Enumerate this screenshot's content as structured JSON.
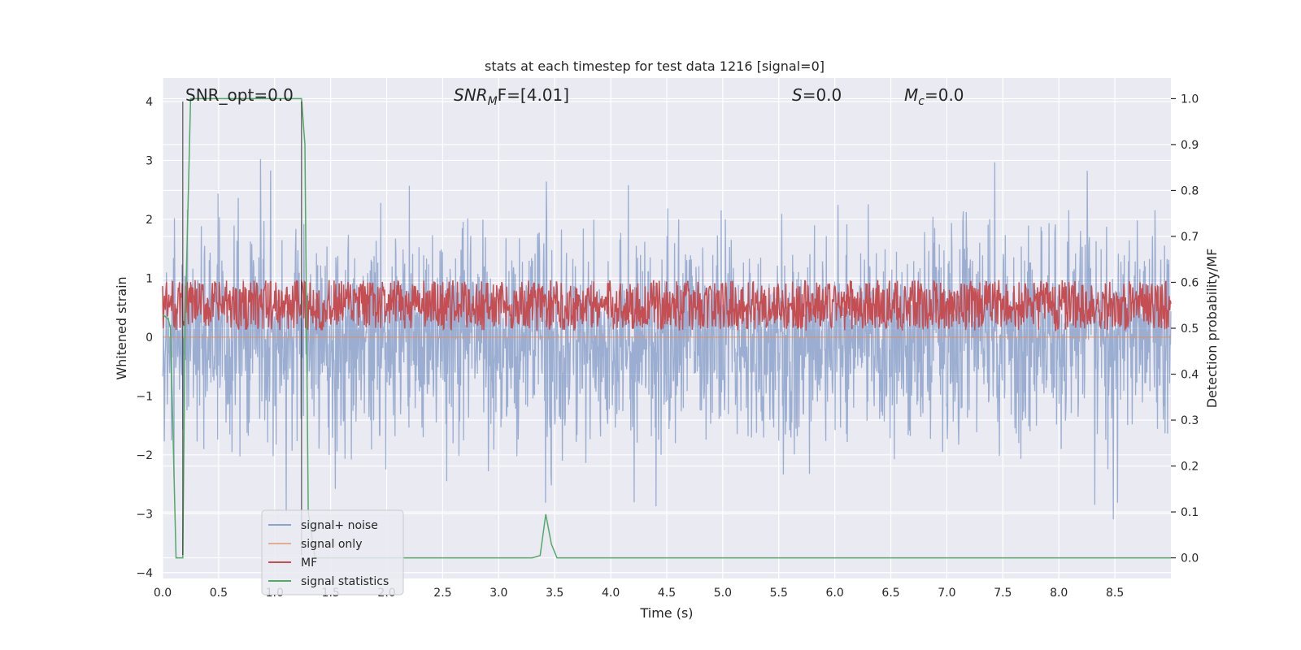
{
  "chart_data": {
    "type": "line",
    "title": "stats at each timestep for test data 1216 [signal=0]",
    "xlabel": "Time (s)",
    "ylabel": "Whitened strain",
    "y2label": "Detection probability/MF",
    "xlim": [
      0.0,
      9.0
    ],
    "ylim": [
      -4.1,
      4.4
    ],
    "y2lim": [
      -0.045,
      1.045
    ],
    "xticks": [
      "0.0",
      "0.5",
      "1.0",
      "1.5",
      "2.0",
      "2.5",
      "3.0",
      "3.5",
      "4.0",
      "4.5",
      "5.0",
      "5.5",
      "6.0",
      "6.5",
      "7.0",
      "7.5",
      "8.0",
      "8.5"
    ],
    "xtick_values": [
      0.0,
      0.5,
      1.0,
      1.5,
      2.0,
      2.5,
      3.0,
      3.5,
      4.0,
      4.5,
      5.0,
      5.5,
      6.0,
      6.5,
      7.0,
      7.5,
      8.0,
      8.5
    ],
    "yticks": [
      "−4",
      "−3",
      "−2",
      "−1",
      "0",
      "1",
      "2",
      "3",
      "4"
    ],
    "ytick_values": [
      -4,
      -3,
      -2,
      -1,
      0,
      1,
      2,
      3,
      4
    ],
    "y2ticks": [
      "0.0",
      "0.1",
      "0.2",
      "0.3",
      "0.4",
      "0.5",
      "0.6",
      "0.7",
      "0.8",
      "0.9",
      "1.0"
    ],
    "y2tick_values": [
      0.0,
      0.1,
      0.2,
      0.3,
      0.4,
      0.5,
      0.6,
      0.7,
      0.8,
      0.9,
      1.0
    ],
    "grid": true,
    "legend_position": "lower-left",
    "annotations": {
      "snr_opt": "SNR_opt=0.0",
      "snr_mf_main": "SNR",
      "snr_mf_sub": "M",
      "snr_mf_rest": "F=[4.01]",
      "s_main": "S",
      "s_rest": "=0.0",
      "mc_main": "M",
      "mc_sub": "c",
      "mc_rest": "=0.0"
    },
    "vertical_lines": [
      0.18,
      1.24
    ],
    "series": [
      {
        "name": "signal+ noise",
        "color": "#4c72b0",
        "axis": "left",
        "kind": "noise",
        "n_points": 2400,
        "sigma": 0.9,
        "seed": 1216
      },
      {
        "name": "signal only",
        "color": "#dd8452",
        "axis": "left",
        "x": [
          0.0,
          9.0
        ],
        "y": [
          0.0,
          0.0
        ]
      },
      {
        "name": "MF",
        "color": "#c44e52",
        "axis": "right",
        "kind": "mf",
        "n_points": 1800,
        "center": 0.55,
        "spread": 0.025,
        "seed": 4242
      },
      {
        "name": "signal statistics",
        "color": "#55a868",
        "axis": "right",
        "x": [
          0.0,
          0.05,
          0.07,
          0.09,
          0.12,
          0.17,
          0.18,
          0.2,
          0.25,
          1.18,
          1.24,
          1.27,
          1.3,
          1.36,
          3.3,
          3.37,
          3.42,
          3.47,
          3.52,
          9.0
        ],
        "y": [
          0.53,
          0.52,
          0.5,
          0.3,
          0.0,
          0.0,
          0.0,
          0.5,
          1.0,
          1.0,
          1.0,
          0.9,
          0.1,
          0.0,
          0.0,
          0.005,
          0.095,
          0.03,
          0.0,
          0.0
        ]
      }
    ]
  }
}
